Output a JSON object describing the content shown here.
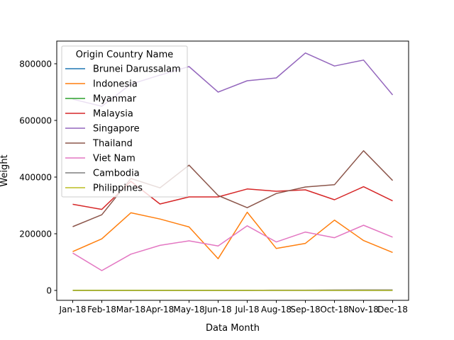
{
  "chart_data": {
    "type": "line",
    "title": "",
    "xlabel": "Data Month",
    "ylabel": "Weight",
    "categories": [
      "Jan-18",
      "Feb-18",
      "Mar-18",
      "Apr-18",
      "May-18",
      "Jun-18",
      "Jul-18",
      "Aug-18",
      "Sep-18",
      "Oct-18",
      "Nov-18",
      "Dec-18"
    ],
    "ylim": [
      -35000,
      880000
    ],
    "yticks": [
      0,
      200000,
      400000,
      600000,
      800000
    ],
    "ytick_labels": [
      "0",
      "200000",
      "400000",
      "600000",
      "800000"
    ],
    "grid": false,
    "legend": {
      "title": "Origin Country Name",
      "placement": "upper left"
    },
    "series": [
      {
        "name": "Brunei Darussalam",
        "color": "#1f77b4",
        "values": [
          100,
          100,
          100,
          100,
          100,
          100,
          100,
          100,
          100,
          100,
          100,
          100
        ]
      },
      {
        "name": "Indonesia",
        "color": "#ff7f0e",
        "values": [
          137000,
          182000,
          274000,
          252000,
          224000,
          112000,
          276000,
          148000,
          166000,
          248000,
          176000,
          134000
        ]
      },
      {
        "name": "Myanmar",
        "color": "#2ca02c",
        "values": [
          500,
          500,
          500,
          500,
          500,
          500,
          500,
          500,
          500,
          500,
          500,
          500
        ]
      },
      {
        "name": "Malaysia",
        "color": "#d62728",
        "values": [
          304000,
          286000,
          385000,
          305000,
          330000,
          330000,
          358000,
          350000,
          355000,
          320000,
          366000,
          316000
        ]
      },
      {
        "name": "Singapore",
        "color": "#9467bd",
        "values": [
          675000,
          650000,
          728000,
          760000,
          790000,
          700000,
          740000,
          750000,
          838000,
          792000,
          813000,
          690000
        ]
      },
      {
        "name": "Thailand",
        "color": "#8c564b",
        "values": [
          225000,
          267000,
          395000,
          362000,
          442000,
          335000,
          292000,
          342000,
          365000,
          373000,
          493000,
          388000
        ]
      },
      {
        "name": "Viet Nam",
        "color": "#e377c2",
        "values": [
          132000,
          70000,
          128000,
          159000,
          175000,
          157000,
          228000,
          171000,
          206000,
          186000,
          230000,
          188000
        ]
      },
      {
        "name": "Cambodia",
        "color": "#7f7f7f",
        "values": [
          0,
          0,
          0,
          0,
          0,
          0,
          0,
          1000,
          1000,
          1500,
          2000,
          2000
        ]
      },
      {
        "name": "Philippines",
        "color": "#bcbd22",
        "values": [
          0,
          0,
          0,
          0,
          0,
          0,
          0,
          0,
          0,
          0,
          0,
          0
        ]
      }
    ]
  }
}
